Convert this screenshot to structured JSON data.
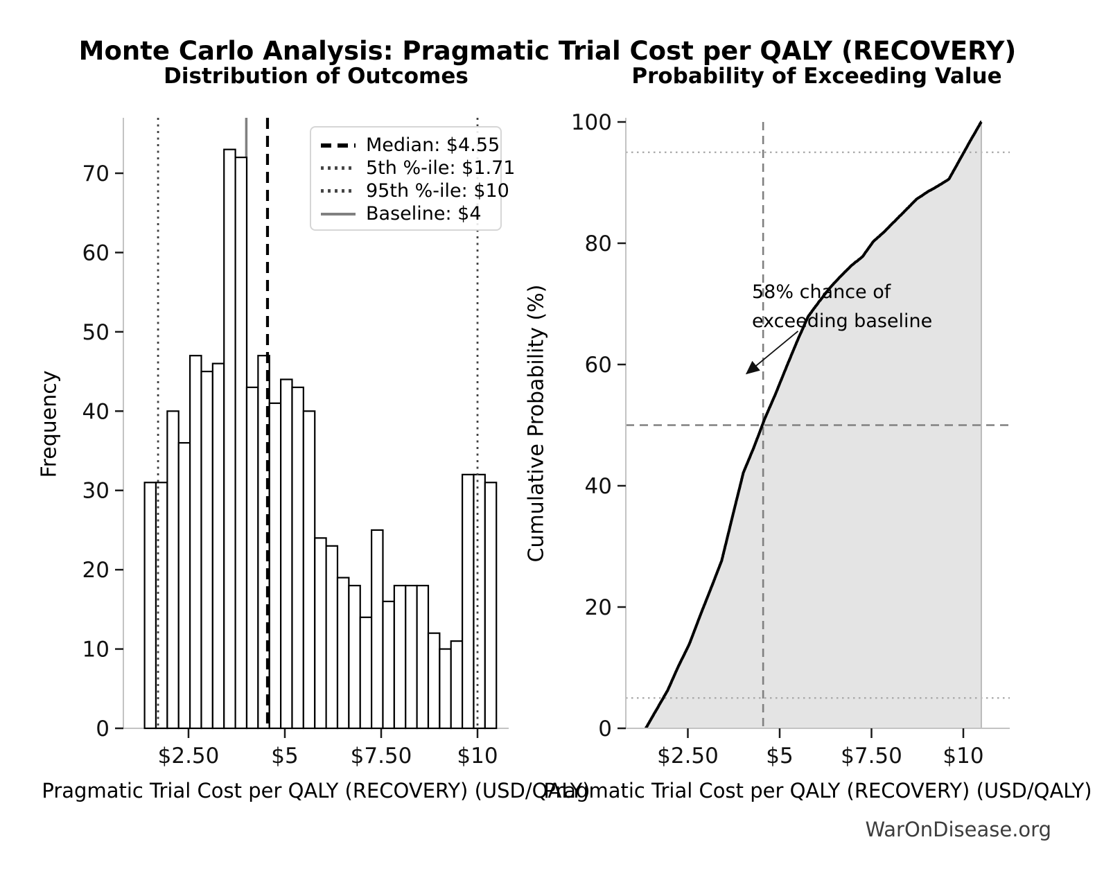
{
  "title": "Monte Carlo Analysis: Pragmatic Trial Cost per QALY (RECOVERY)",
  "watermark": "WarOnDisease.org",
  "annotation": {
    "line1": "58% chance of",
    "line2": "exceeding baseline"
  },
  "legend": {
    "items": [
      {
        "label": "Median: $4.55",
        "style": "dashed-black"
      },
      {
        "label": "5th %-ile: $1.71",
        "style": "dotted-gray"
      },
      {
        "label": "95th %-ile: $10",
        "style": "dotted-gray"
      },
      {
        "label": "Baseline: $4",
        "style": "solid-gray"
      }
    ]
  },
  "colors": {
    "bar_fill": "#ffffff",
    "bar_edge": "#000000",
    "median_line": "#000000",
    "percentile_line": "#404040",
    "baseline_line": "#808080",
    "cdf_line": "#000000",
    "cdf_fill": "#e4e4e4",
    "cdf_fill_edge": "#bbbbbb",
    "ref_gray_dashed": "#808080",
    "dotted_light": "#a6a6a6",
    "spine": "#c3c3c3",
    "tick": "#1a1a1a",
    "watermark": "#3d3d3d"
  },
  "chart_data": [
    {
      "type": "bar",
      "name": "histogram",
      "title": "Distribution of Outcomes",
      "xlabel": "Pragmatic Trial Cost per QALY (RECOVERY) (USD/QALY)",
      "ylabel": "Frequency",
      "bin_start": 1.36,
      "bin_width": 0.2945,
      "values": [
        31,
        31,
        40,
        36,
        47,
        45,
        46,
        73,
        72,
        43,
        47,
        41,
        44,
        43,
        40,
        24,
        23,
        19,
        18,
        14,
        25,
        16,
        18,
        18,
        18,
        12,
        10,
        11,
        32,
        32,
        31
      ],
      "total_samples": 1000,
      "xtick_values": [
        2.5,
        5,
        7.5,
        10
      ],
      "xtick_labels": [
        "$2.50",
        "$5",
        "$7.50",
        "$10"
      ],
      "ytick_values": [
        0,
        10,
        20,
        30,
        40,
        50,
        60,
        70
      ],
      "ylim": [
        0,
        77
      ],
      "xlim": [
        0.8,
        10.9
      ],
      "grid": false,
      "legend_position": "upper right",
      "ref_lines": {
        "median": 4.55,
        "p5": 1.71,
        "p95": 10,
        "baseline": 4
      }
    },
    {
      "type": "line",
      "name": "cumulative-distribution",
      "title": "Probability of Exceeding Value",
      "xlabel": "Pragmatic Trial Cost per QALY (RECOVERY) (USD/QALY)",
      "ylabel": "Cumulative Probability (%)",
      "x_start": 1.36,
      "x_end": 10.49,
      "cumulative_percent": [
        3.1,
        6.2,
        10.2,
        13.8,
        18.5,
        23.0,
        27.6,
        34.9,
        42.1,
        46.4,
        51.1,
        55.2,
        59.6,
        63.9,
        67.9,
        70.3,
        72.6,
        74.5,
        76.3,
        77.7,
        80.2,
        81.8,
        83.6,
        85.4,
        87.2,
        88.4,
        89.4,
        90.5,
        93.7,
        96.9,
        100.0
      ],
      "xtick_values": [
        2.5,
        5,
        7.5,
        10
      ],
      "xtick_labels": [
        "$2.50",
        "$5",
        "$7.50",
        "$10"
      ],
      "ytick_values": [
        0,
        20,
        40,
        60,
        80,
        100
      ],
      "ylim": [
        0,
        100
      ],
      "grid": false,
      "hlines": [
        {
          "value": 5,
          "style": "dotted"
        },
        {
          "value": 50,
          "style": "dashed"
        },
        {
          "value": 95,
          "style": "dotted"
        }
      ],
      "vline": {
        "value": 4.55,
        "style": "dashed"
      },
      "annotation_arrow_tip_xy": [
        4.1,
        58.5
      ],
      "annotation_arrow_start_xy": [
        5.5,
        65.5
      ]
    }
  ]
}
